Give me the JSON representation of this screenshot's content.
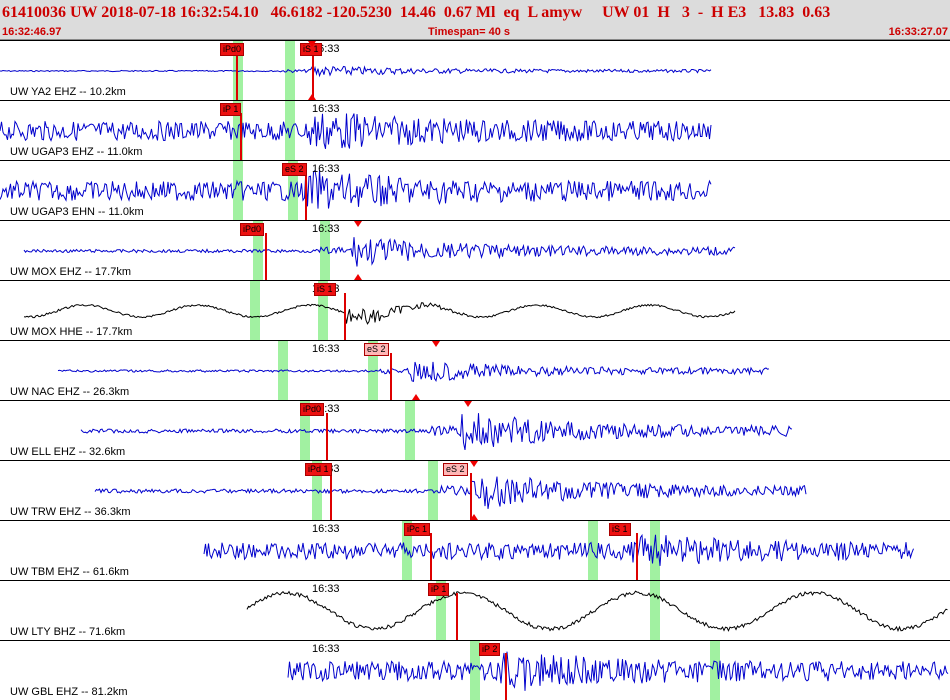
{
  "header": {
    "title": "61410036 UW 2018-07-18 16:32:54.10   46.6182 -120.5230  14.46  0.67 Ml  eq  L amyw     UW 01  H   3  -  H E3   13.83  0.63",
    "start_time": "16:32:46.97",
    "timespan": "Timespan=  40 s",
    "end_time": "16:33:27.07"
  },
  "colors": {
    "trace_blue": "#0000cc",
    "trace_black": "#000000",
    "window_green": "#90ee90",
    "pick_red": "#ee1111",
    "pick_pink": "#ffb6b6"
  },
  "tick_label": "16:33",
  "traces": [
    {
      "label": "UW YA2 EHZ -- 10.2km",
      "color": "trace_blue",
      "start": 0.0,
      "end": 0.75,
      "picks": [
        {
          "text": "iPd0",
          "style": "red"
        },
        {
          "text": "iS 1",
          "style": "red"
        }
      ]
    },
    {
      "label": "UW UGAP3 EHZ -- 11.0km",
      "color": "trace_blue",
      "start": 0.0,
      "end": 0.75,
      "picks": [
        {
          "text": "iP 1",
          "style": "red"
        }
      ]
    },
    {
      "label": "UW UGAP3 EHN -- 11.0km",
      "color": "trace_blue",
      "start": 0.0,
      "end": 0.75,
      "picks": [
        {
          "text": "eS 2",
          "style": "red"
        }
      ]
    },
    {
      "label": "UW MOX EHZ -- 17.7km",
      "color": "trace_blue",
      "start": 0.02,
      "end": 0.77,
      "picks": [
        {
          "text": "iPd0",
          "style": "red"
        }
      ]
    },
    {
      "label": "UW MOX HHE -- 17.7km",
      "color": "trace_black",
      "start": 0.02,
      "end": 0.77,
      "picks": [
        {
          "text": "iS 1",
          "style": "red"
        }
      ]
    },
    {
      "label": "UW NAC EHZ -- 26.3km",
      "color": "trace_blue",
      "start": 0.05,
      "end": 0.8,
      "picks": [
        {
          "text": "eS 2",
          "style": "pink"
        }
      ]
    },
    {
      "label": "UW ELL EHZ -- 32.6km",
      "color": "trace_blue",
      "start": 0.07,
      "end": 0.82,
      "picks": [
        {
          "text": "iPd0",
          "style": "red"
        }
      ]
    },
    {
      "label": "UW TRW EHZ -- 36.3km",
      "color": "trace_blue",
      "start": 0.08,
      "end": 0.83,
      "picks": [
        {
          "text": "iPd 1",
          "style": "red"
        },
        {
          "text": "eS 2",
          "style": "pink"
        }
      ]
    },
    {
      "label": "UW TBM EHZ -- 61.6km",
      "color": "trace_blue",
      "start": 0.18,
      "end": 0.93,
      "picks": [
        {
          "text": "iPc 1",
          "style": "red"
        },
        {
          "text": "iS 1",
          "style": "red"
        }
      ]
    },
    {
      "label": "UW LTY BHZ -- 71.6km",
      "color": "trace_black",
      "start": 0.22,
      "end": 0.97,
      "picks": [
        {
          "text": "iP 1",
          "style": "red"
        }
      ]
    },
    {
      "label": "UW GBL EHZ -- 81.2km",
      "color": "trace_blue",
      "start": 0.25,
      "end": 1.0,
      "picks": [
        {
          "text": "iP 2",
          "style": "red"
        }
      ]
    }
  ]
}
